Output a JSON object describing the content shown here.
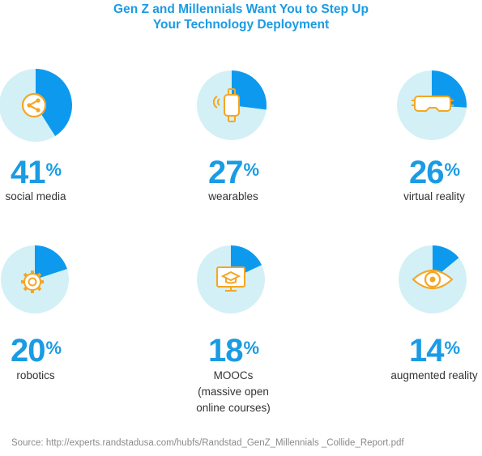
{
  "header": {
    "title_line1": "Gen Z and Millennials Want You to Step Up",
    "title_line2": "Your Technology Deployment"
  },
  "colors": {
    "accent": "#1a9be4",
    "pie_fill": "#0d9aee",
    "pie_bg": "#d3f0f6",
    "icon": "#f5a623",
    "label_text": "#333333",
    "source_text": "#8a8a8a"
  },
  "chart_data": {
    "type": "pie",
    "unit": "%",
    "items": [
      {
        "label": "social media",
        "value": 41,
        "icon": "share-icon"
      },
      {
        "label": "wearables",
        "value": 27,
        "icon": "smartwatch-icon"
      },
      {
        "label": "virtual reality",
        "value": 26,
        "icon": "vr-headset-icon"
      },
      {
        "label": "robotics",
        "value": 20,
        "icon": "gear-icon"
      },
      {
        "label": "MOOCs (massive open online courses)",
        "value": 18,
        "icon": "graduation-cap-monitor-icon"
      },
      {
        "label": "augmented reality",
        "value": 14,
        "icon": "eye-ar-icon"
      }
    ]
  },
  "footer": {
    "source": "Source: http://experts.randstadusa.com/hubfs/Randstad_GenZ_Millennials _Collide_Report.pdf"
  }
}
